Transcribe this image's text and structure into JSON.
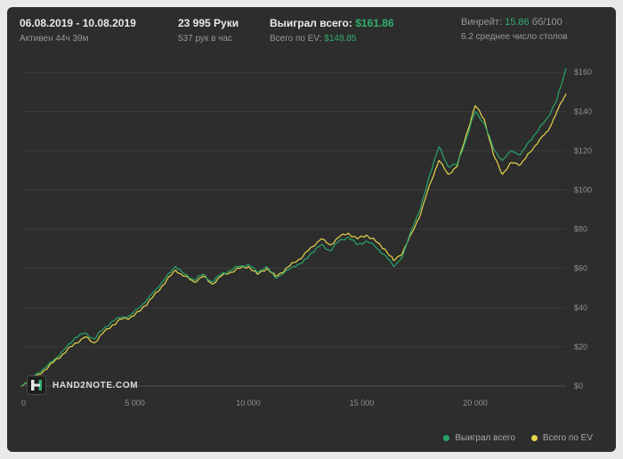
{
  "header": {
    "date_range": "06.08.2019 - 10.08.2019",
    "active_time": "Активен 44ч 39м",
    "hands_count": "23 995 Руки",
    "hands_rate": "537 рук в час",
    "won_total_label": "Выиграл всего:",
    "won_total_value": "$161.86",
    "ev_total_label": "Всего по EV:",
    "ev_total_value": "$148.85",
    "winrate_label": "Винрейт:",
    "winrate_value": "15.86",
    "winrate_unit": "бб/100",
    "avg_tables": "6.2 среднее число столов"
  },
  "logo": {
    "text": "HAND2NOTE.COM"
  },
  "colors": {
    "accent_green": "#2fae6e",
    "line_green": "#27a567",
    "line_yellow": "#e5d54a",
    "panel_bg": "#2d2d2d",
    "grid": "#3c3c3c",
    "zero_line": "#505050",
    "tick_text": "#8f8f8f"
  },
  "chart_data": {
    "type": "line",
    "title": "",
    "xlabel": "",
    "ylabel": "",
    "xlim": [
      0,
      24000
    ],
    "ylim": [
      0,
      166
    ],
    "grid": true,
    "legend_position": "bottom-right",
    "xticks": [
      0,
      5000,
      10000,
      15000,
      20000
    ],
    "xtick_labels": [
      "0",
      "5 000",
      "10 000",
      "15 000",
      "20 000"
    ],
    "yticks": [
      0,
      20,
      40,
      60,
      80,
      100,
      120,
      140,
      160
    ],
    "ytick_labels": [
      "$0",
      "$20",
      "$40",
      "$60",
      "$80",
      "$100",
      "$120",
      "$140",
      "$160"
    ],
    "x": [
      0,
      400,
      800,
      1200,
      1600,
      2000,
      2400,
      2800,
      3200,
      3600,
      4000,
      4400,
      4800,
      5200,
      5600,
      6000,
      6400,
      6800,
      7200,
      7600,
      8000,
      8400,
      8800,
      9200,
      9600,
      10000,
      10400,
      10800,
      11200,
      11600,
      12000,
      12400,
      12800,
      13200,
      13600,
      14000,
      14400,
      14800,
      15200,
      15600,
      16000,
      16400,
      16800,
      17200,
      17600,
      18000,
      18400,
      18800,
      19200,
      19600,
      20000,
      20400,
      20800,
      21200,
      21600,
      22000,
      22400,
      22800,
      23200,
      23600,
      23995
    ],
    "series": [
      {
        "name": "Выиграл всего",
        "color": "#27a567",
        "values": [
          0,
          4,
          7,
          11,
          15,
          20,
          25,
          27,
          24,
          29,
          33,
          35,
          36,
          40,
          45,
          50,
          56,
          61,
          57,
          54,
          57,
          53,
          57,
          59,
          61,
          62,
          58,
          61,
          55,
          58,
          61,
          63,
          68,
          72,
          69,
          74,
          76,
          72,
          74,
          71,
          67,
          61,
          66,
          80,
          91,
          108,
          122,
          112,
          113,
          126,
          140,
          134,
          121,
          115,
          120,
          118,
          125,
          131,
          137,
          146,
          161.86
        ]
      },
      {
        "name": "Всего по EV",
        "color": "#e5d54a",
        "values": [
          0,
          3,
          6,
          10,
          14,
          18,
          22,
          25,
          22,
          27,
          31,
          34,
          35,
          38,
          43,
          48,
          54,
          59,
          56,
          53,
          56,
          52,
          56,
          58,
          60,
          61,
          57,
          60,
          56,
          59,
          63,
          66,
          71,
          75,
          72,
          76,
          78,
          75,
          77,
          74,
          70,
          64,
          68,
          78,
          88,
          103,
          115,
          108,
          112,
          128,
          143,
          136,
          118,
          108,
          114,
          113,
          119,
          125,
          130,
          140,
          148.85
        ]
      }
    ]
  }
}
